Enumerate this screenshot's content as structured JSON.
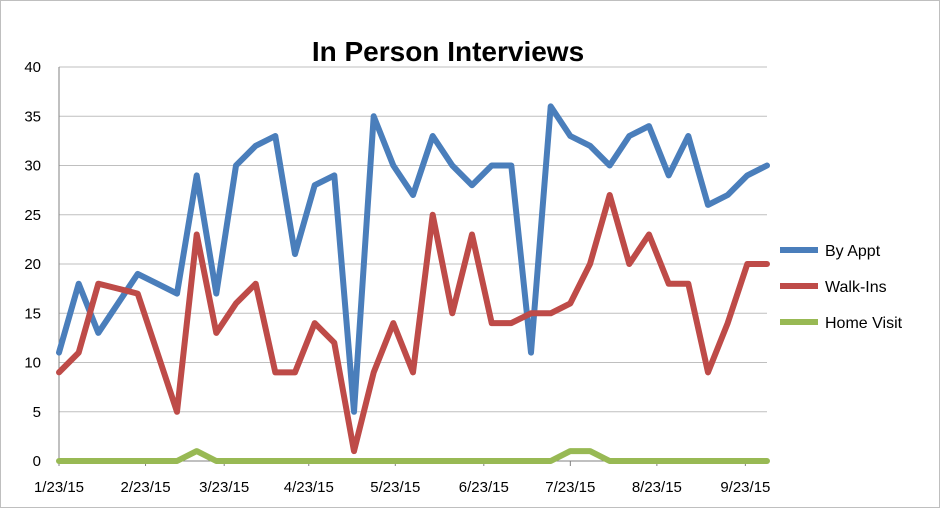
{
  "chart_data": {
    "type": "line",
    "title": "In Person Interviews",
    "xlabel": "",
    "ylabel": "",
    "ylim": [
      0,
      40
    ],
    "yticks": [
      "0",
      "5",
      "10",
      "15",
      "20",
      "25",
      "30",
      "35",
      "40"
    ],
    "x_tick_labels": [
      "1/23/15",
      "2/23/15",
      "3/23/15",
      "4/23/15",
      "5/23/15",
      "6/23/15",
      "7/23/15",
      "8/23/15",
      "9/23/15"
    ],
    "x_tick_indices": [
      0,
      4.4,
      8.4,
      12.7,
      17.1,
      21.6,
      26.0,
      30.4,
      34.9
    ],
    "grid": "horizontal",
    "legend_position": "right",
    "series": [
      {
        "name": "By Appt",
        "color": "#4a7ebb",
        "values": [
          11,
          18,
          13,
          16,
          19,
          18,
          17,
          29,
          17,
          30,
          32,
          33,
          21,
          28,
          29,
          5,
          35,
          30,
          27,
          33,
          30,
          28,
          30,
          30,
          11,
          36,
          33,
          32,
          30,
          33,
          34,
          29,
          33,
          26,
          27,
          29,
          30
        ]
      },
      {
        "name": "Walk-Ins",
        "color": "#be4b48",
        "values": [
          9,
          11,
          18,
          17.5,
          17,
          11,
          5,
          23,
          13,
          16,
          18,
          9,
          9,
          14,
          12,
          1,
          9,
          14,
          9,
          25,
          15,
          23,
          14,
          14,
          15,
          15,
          16,
          20,
          27,
          20,
          23,
          18,
          18,
          9,
          14,
          20,
          20
        ]
      },
      {
        "name": "Home Visit",
        "color": "#98b954",
        "values": [
          0,
          0,
          0,
          0,
          0,
          0,
          0,
          1,
          0,
          0,
          0,
          0,
          0,
          0,
          0,
          0,
          0,
          0,
          0,
          0,
          0,
          0,
          0,
          0,
          0,
          0,
          1,
          1,
          0,
          0,
          0,
          0,
          0,
          0,
          0,
          0,
          0
        ]
      }
    ]
  }
}
